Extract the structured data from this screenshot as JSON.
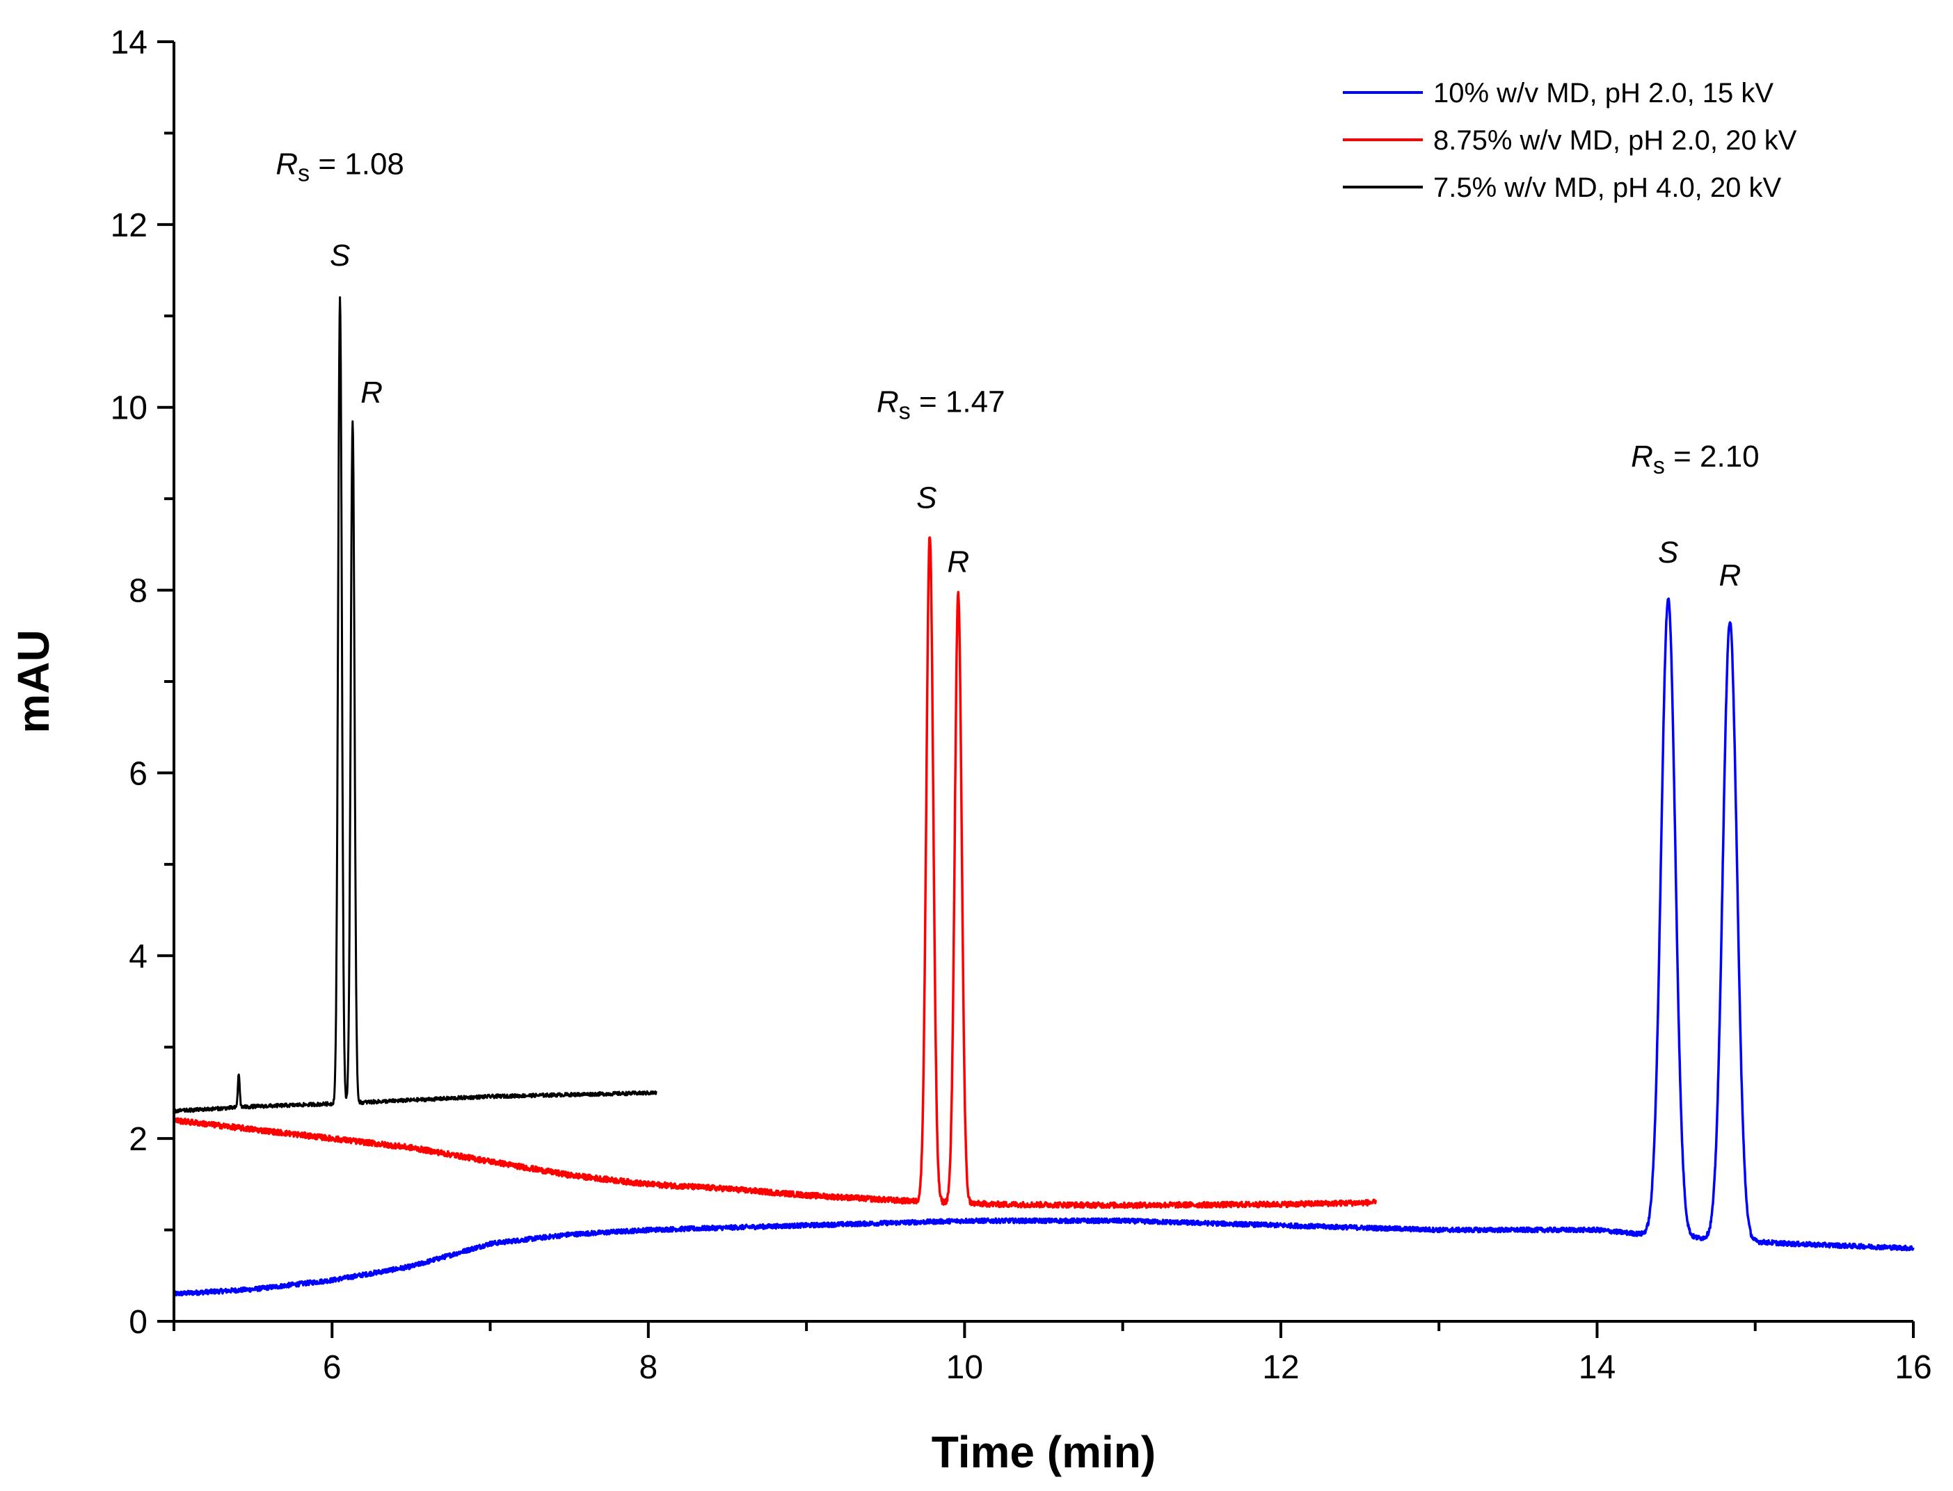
{
  "chart_data": {
    "type": "line",
    "xlabel": "Time (min)",
    "ylabel": "mAU",
    "xlim": [
      5,
      16
    ],
    "ylim": [
      0,
      14
    ],
    "x_major_ticks": [
      6,
      8,
      10,
      12,
      14,
      16
    ],
    "y_major_ticks": [
      0,
      2,
      4,
      6,
      8,
      10,
      12,
      14
    ],
    "legend_position": "top-right",
    "series": [
      {
        "name": "10% w/v MD, pH 2.0, 15 kV",
        "color": "#0000ff",
        "x_range": [
          5.0,
          16.0
        ],
        "x": [
          5.0,
          5.5,
          6.0,
          6.5,
          7.0,
          7.5,
          8.0,
          9.0,
          10.0,
          11.0,
          12.0,
          13.0,
          14.0,
          14.3,
          15.2,
          16.0
        ],
        "y": [
          0.3,
          0.35,
          0.45,
          0.6,
          0.85,
          0.95,
          1.0,
          1.05,
          1.1,
          1.1,
          1.05,
          1.0,
          1.0,
          0.95,
          0.85,
          0.8
        ],
        "peaks": [
          {
            "x": 14.45,
            "height": 7.9,
            "sigma": 0.045
          },
          {
            "x": 14.84,
            "height": 7.65,
            "sigma": 0.045
          }
        ],
        "noise": 0.025
      },
      {
        "name": "8.75% w/v MD, pH 2.0, 20 kV",
        "color": "#ff0000",
        "x_range": [
          5.0,
          12.6
        ],
        "x": [
          5.0,
          5.5,
          6.0,
          6.5,
          7.0,
          7.5,
          8.0,
          8.5,
          9.0,
          9.6,
          10.2,
          11.0,
          12.0,
          12.6
        ],
        "y": [
          2.2,
          2.1,
          2.0,
          1.9,
          1.75,
          1.6,
          1.5,
          1.45,
          1.38,
          1.32,
          1.28,
          1.27,
          1.28,
          1.3
        ],
        "peaks": [
          {
            "x": 9.78,
            "height": 8.6,
            "sigma": 0.022
          },
          {
            "x": 9.96,
            "height": 7.95,
            "sigma": 0.022
          }
        ],
        "noise": 0.03
      },
      {
        "name": "7.5% w/v MD, pH 4.0, 20 kV",
        "color": "#000000",
        "x_range": [
          5.0,
          8.05
        ],
        "x": [
          5.0,
          5.5,
          6.0,
          6.5,
          7.0,
          7.5,
          8.05
        ],
        "y": [
          2.3,
          2.35,
          2.38,
          2.42,
          2.46,
          2.48,
          2.5
        ],
        "peaks": [
          {
            "x": 5.41,
            "height": 2.7,
            "sigma": 0.006
          },
          {
            "x": 6.05,
            "height": 11.2,
            "sigma": 0.012
          },
          {
            "x": 6.13,
            "height": 9.85,
            "sigma": 0.012
          }
        ],
        "noise": 0.02
      }
    ],
    "annotations": [
      {
        "x": 6.05,
        "y": 12.55,
        "parts": [
          "R",
          "s",
          " = 1.08"
        ]
      },
      {
        "x": 9.85,
        "y": 9.95,
        "parts": [
          "R",
          "s",
          " = 1.47"
        ]
      },
      {
        "x": 14.62,
        "y": 9.35,
        "parts": [
          "R",
          "s",
          " = 2.10"
        ]
      }
    ],
    "peak_labels": [
      {
        "text": "S",
        "x": 6.05,
        "y": 11.55
      },
      {
        "text": "R",
        "x": 6.25,
        "y": 10.05
      },
      {
        "text": "S",
        "x": 9.76,
        "y": 8.9
      },
      {
        "text": "R",
        "x": 9.96,
        "y": 8.2
      },
      {
        "text": "S",
        "x": 14.45,
        "y": 8.3
      },
      {
        "text": "R",
        "x": 14.84,
        "y": 8.05
      }
    ]
  }
}
